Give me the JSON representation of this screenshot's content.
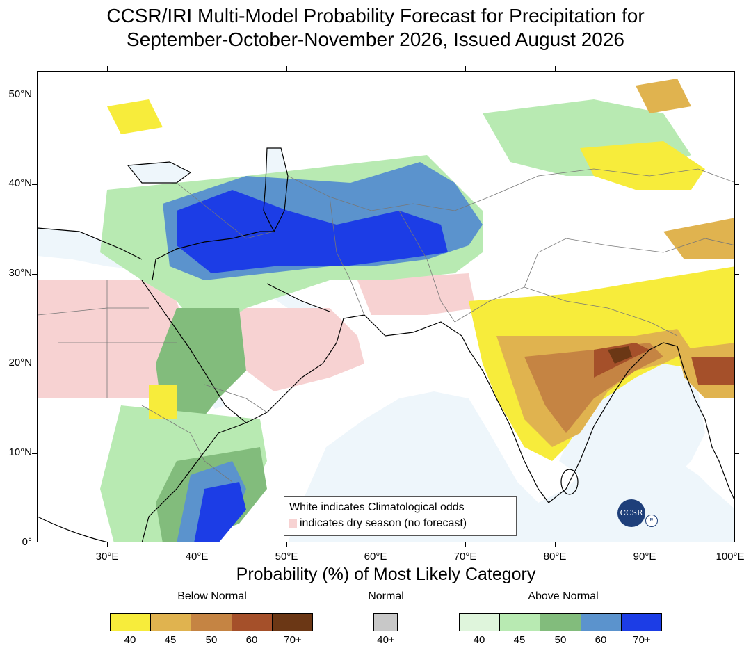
{
  "title": {
    "line1": "CCSR/IRI Multi-Model Probability Forecast for Precipitation for",
    "line2": "September-October-November 2026, Issued August 2026"
  },
  "map": {
    "y_axis_labels": [
      "50°N",
      "40°N",
      "30°N",
      "20°N",
      "10°N",
      "0°"
    ],
    "x_axis_labels": [
      "30°E",
      "40°E",
      "50°E",
      "60°E",
      "70°E",
      "80°E",
      "90°E",
      "100°E"
    ],
    "ocean_color": "#eef6fb",
    "land_color": "#ffffff"
  },
  "legend": {
    "line1": "White indicates Climatological odds",
    "line2": "indicates dry season (no forecast)",
    "dry_season_color": "#f7d2d2"
  },
  "logo": {
    "main": "CCSR",
    "secondary": "IRI"
  },
  "colorbar": {
    "title": "Probability (%) of Most Likely Category",
    "below_normal": {
      "label": "Below Normal",
      "ticks": [
        "40",
        "45",
        "50",
        "60",
        "70+"
      ],
      "colors": [
        "#f7ec3b",
        "#e0b34f",
        "#c58443",
        "#a5502a",
        "#6b3715"
      ]
    },
    "normal": {
      "label": "Normal",
      "ticks": [
        "40+"
      ],
      "colors": [
        "#c8c8c8"
      ]
    },
    "above_normal": {
      "label": "Above Normal",
      "ticks": [
        "40",
        "45",
        "50",
        "60",
        "70+"
      ],
      "colors": [
        "#dff5dc",
        "#b8eab2",
        "#82bc7c",
        "#5b93cd",
        "#1c3de6"
      ]
    }
  }
}
